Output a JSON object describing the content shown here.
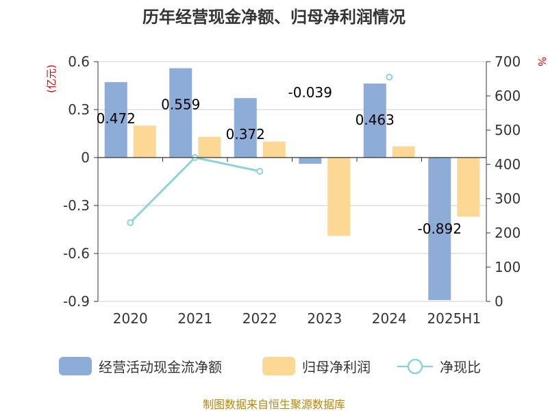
{
  "chart_data": {
    "type": "bar",
    "title": "历年经营现金净额、归母净利润情况",
    "categories": [
      "2020",
      "2021",
      "2022",
      "2023",
      "2024",
      "2025H1"
    ],
    "y_left": {
      "unit": "(亿元)",
      "ylim": [
        -0.9,
        0.6
      ],
      "ticks": [
        "0.6",
        "0.3",
        "0",
        "-0.3",
        "-0.6",
        "-0.9"
      ]
    },
    "y_right": {
      "unit": "%",
      "ylim": [
        0,
        700
      ],
      "ticks": [
        "700",
        "600",
        "500",
        "400",
        "300",
        "200",
        "100",
        "0"
      ]
    },
    "series": [
      {
        "name": "经营活动现金流净额",
        "type": "bar",
        "axis": "left",
        "color": "#8eacd8",
        "values": [
          0.472,
          0.559,
          0.372,
          -0.039,
          0.463,
          -0.892
        ],
        "labels": [
          "0.472",
          "0.559",
          "0.372",
          "-0.039",
          "0.463",
          "-0.892"
        ]
      },
      {
        "name": "归母净利润",
        "type": "bar",
        "axis": "left",
        "color": "#fdd895",
        "values": [
          0.2,
          0.13,
          0.1,
          -0.49,
          0.07,
          -0.37
        ]
      },
      {
        "name": "净现比",
        "type": "line",
        "axis": "right",
        "color": "#8ed3d6",
        "values": [
          230,
          420,
          380,
          null,
          655,
          null
        ]
      }
    ],
    "grid": true,
    "legend_position": "bottom"
  },
  "source_text": "制图数据来自恒生聚源数据库"
}
